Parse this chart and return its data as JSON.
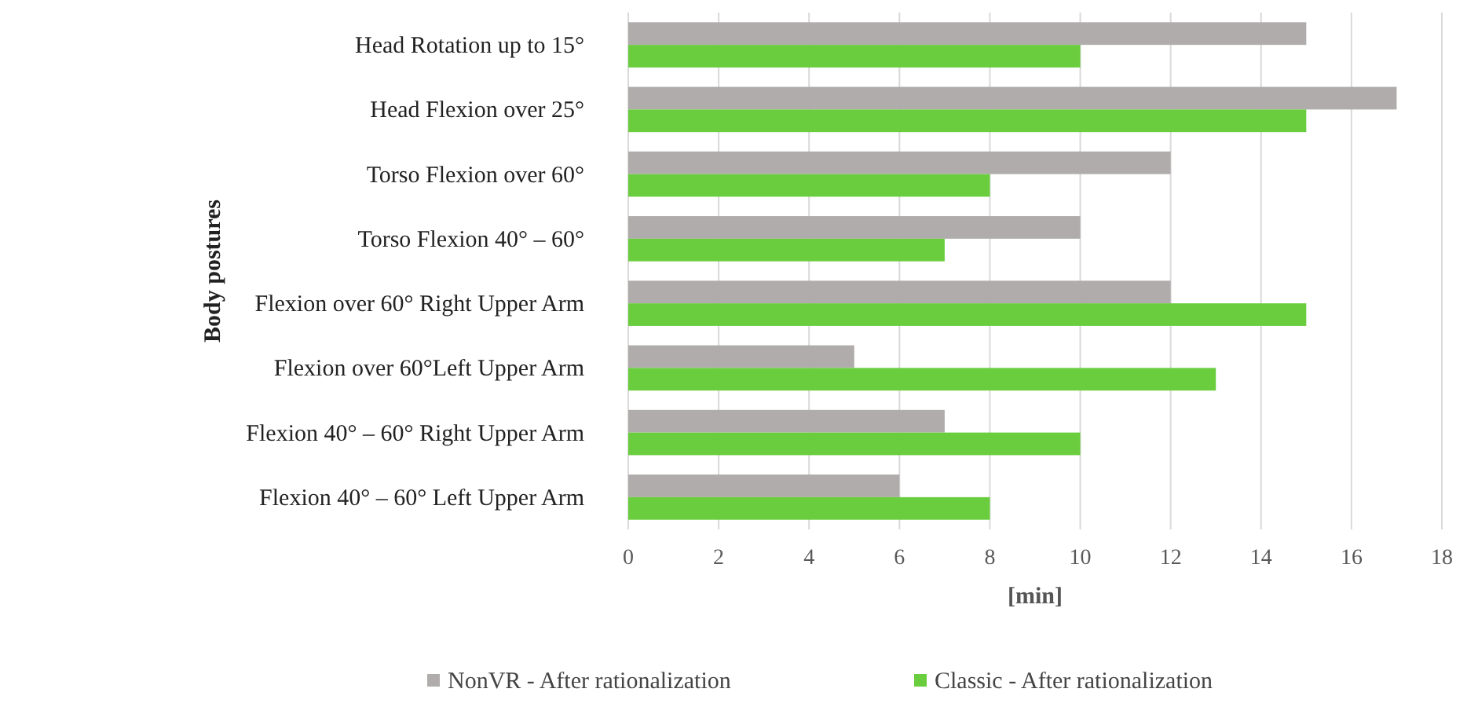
{
  "chart_data": {
    "type": "bar",
    "orientation": "horizontal",
    "ylabel": "Body postures",
    "xlabel": "[min]",
    "categories": [
      "Head Rotation up to 15°",
      "Head Flexion over 25°",
      "Torso Flexion over 60°",
      "Torso Flexion 40° – 60°",
      "Flexion over 60° Right Upper Arm",
      "Flexion over 60°Left Upper Arm",
      "Flexion 40° – 60° Right Upper Arm",
      "Flexion 40° – 60° Left Upper Arm"
    ],
    "series": [
      {
        "name": "NonVR - After rationalization",
        "color": "#b0acab",
        "values": [
          15,
          17,
          12,
          10,
          12,
          5,
          7,
          6
        ]
      },
      {
        "name": "Classic - After rationalization",
        "color": "#6acd3e",
        "values": [
          10,
          15,
          8,
          7,
          15,
          13,
          10,
          8
        ]
      }
    ],
    "xlim": [
      0,
      18
    ],
    "xticks": [
      0,
      2,
      4,
      6,
      8,
      10,
      12,
      14,
      16,
      18
    ],
    "grid": "x",
    "legend": "bottom"
  }
}
